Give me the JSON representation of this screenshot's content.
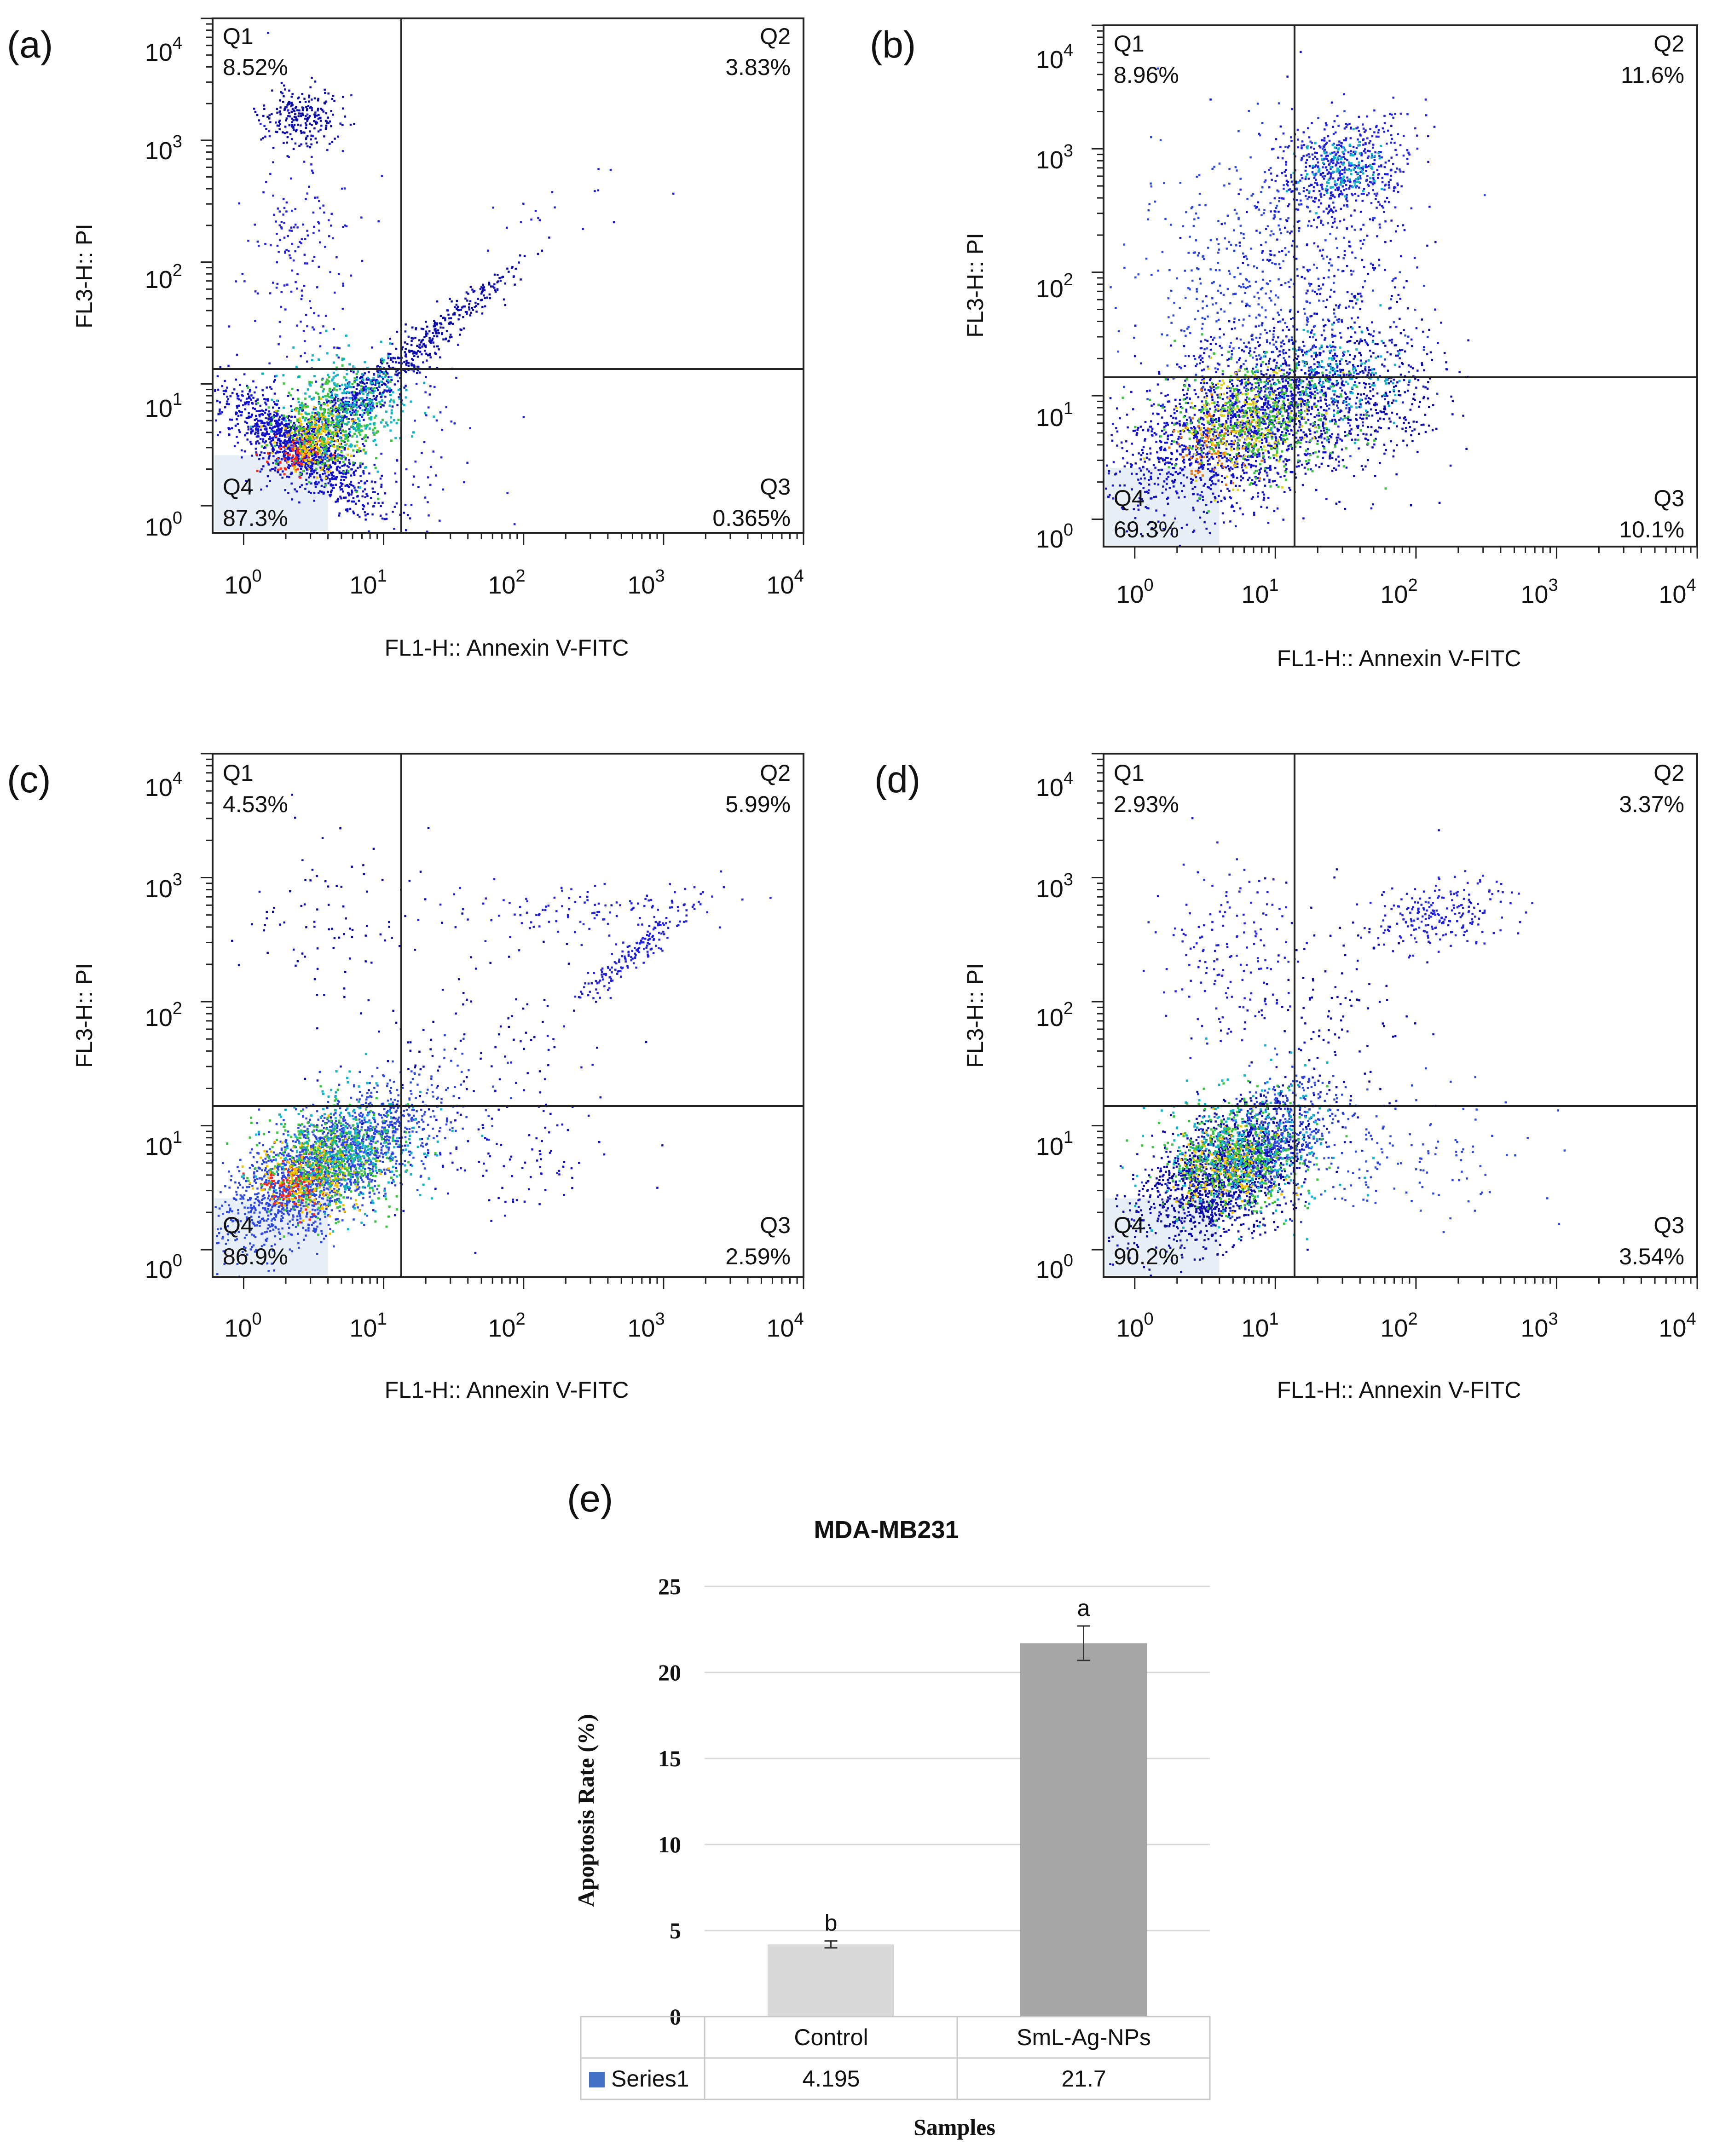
{
  "chart_data": [
    {
      "type": "scatter",
      "panel_label": "(a)",
      "xlabel": "FL1-H:: Annexin V-FITC",
      "ylabel": "FL3-H:: PI",
      "axis_scale": "log",
      "xlim": [
        0.6,
        10000
      ],
      "ylim": [
        0.6,
        10000
      ],
      "x_ticks": [
        {
          "base": "10",
          "exp": "0"
        },
        {
          "base": "10",
          "exp": "1"
        },
        {
          "base": "10",
          "exp": "2"
        },
        {
          "base": "10",
          "exp": "3"
        },
        {
          "base": "10",
          "exp": "4"
        }
      ],
      "y_ticks": [
        {
          "base": "10",
          "exp": "0"
        },
        {
          "base": "10",
          "exp": "1"
        },
        {
          "base": "10",
          "exp": "2"
        },
        {
          "base": "10",
          "exp": "3"
        },
        {
          "base": "10",
          "exp": "4"
        }
      ],
      "gate": {
        "x": 18,
        "y": 20
      },
      "quadrants": [
        {
          "name": "Q1",
          "value": "8.52%"
        },
        {
          "name": "Q2",
          "value": "3.83%"
        },
        {
          "name": "Q3",
          "value": "0.365%"
        },
        {
          "name": "Q4",
          "value": "87.3%"
        }
      ],
      "clusters": [
        {
          "x": 2.5,
          "y": 3,
          "sx": 0.28,
          "sy": 0.25,
          "n": 1100,
          "r": -0.8
        },
        {
          "x": 5,
          "y": 6,
          "sx": 0.25,
          "sy": 0.22,
          "n": 500,
          "r": 0.85
        },
        {
          "x": 14,
          "y": 16,
          "sx": 0.22,
          "sy": 0.2,
          "n": 220,
          "r": 0.85
        },
        {
          "x": 40,
          "y": 45,
          "sx": 0.2,
          "sy": 0.18,
          "n": 140,
          "r": 0.9
        },
        {
          "x": 2.5,
          "y": 1600,
          "sx": 0.15,
          "sy": 0.12,
          "n": 230,
          "r": 0
        },
        {
          "x": 2.5,
          "y": 120,
          "sx": 0.2,
          "sy": 0.5,
          "n": 180,
          "r": 0
        },
        {
          "x": 20,
          "y": 3,
          "sx": 0.3,
          "sy": 0.35,
          "n": 50,
          "r": 0
        },
        {
          "x": 200,
          "y": 300,
          "sx": 0.3,
          "sy": 0.2,
          "n": 18,
          "r": 0.6
        }
      ],
      "hot_spots": [
        {
          "x": 2.3,
          "y": 2.6,
          "sx": 0.09,
          "sy": 0.07,
          "n": 70,
          "color": "#ff2b1c"
        },
        {
          "x": 3.2,
          "y": 3.6,
          "sx": 0.14,
          "sy": 0.13,
          "n": 200,
          "color": "#f2c200"
        },
        {
          "x": 4.2,
          "y": 4.8,
          "sx": 0.2,
          "sy": 0.18,
          "n": 320,
          "color": "#39c43d"
        },
        {
          "x": 6,
          "y": 7,
          "sx": 0.22,
          "sy": 0.2,
          "n": 260,
          "color": "#12b5c8"
        }
      ]
    },
    {
      "type": "scatter",
      "panel_label": "(b)",
      "xlabel": "FL1-H:: Annexin V-FITC",
      "ylabel": "FL3-H:: PI",
      "axis_scale": "log",
      "xlim": [
        0.6,
        10000
      ],
      "ylim": [
        0.6,
        10000
      ],
      "x_ticks": [
        {
          "base": "10",
          "exp": "0"
        },
        {
          "base": "10",
          "exp": "1"
        },
        {
          "base": "10",
          "exp": "2"
        },
        {
          "base": "10",
          "exp": "3"
        },
        {
          "base": "10",
          "exp": "4"
        }
      ],
      "y_ticks": [
        {
          "base": "10",
          "exp": "0"
        },
        {
          "base": "10",
          "exp": "1"
        },
        {
          "base": "10",
          "exp": "2"
        },
        {
          "base": "10",
          "exp": "3"
        },
        {
          "base": "10",
          "exp": "4"
        }
      ],
      "gate": {
        "x": 18,
        "y": 20
      },
      "quadrants": [
        {
          "name": "Q1",
          "value": "8.96%"
        },
        {
          "name": "Q2",
          "value": "11.6%"
        },
        {
          "name": "Q3",
          "value": "10.1%"
        },
        {
          "name": "Q4",
          "value": "69.3%"
        }
      ],
      "clusters": [
        {
          "x": 4,
          "y": 5,
          "sx": 0.4,
          "sy": 0.35,
          "n": 1300,
          "r": 0.4
        },
        {
          "x": 14,
          "y": 9,
          "sx": 0.35,
          "sy": 0.3,
          "n": 700,
          "r": 0.2
        },
        {
          "x": 45,
          "y": 10,
          "sx": 0.3,
          "sy": 0.3,
          "n": 320,
          "r": 0
        },
        {
          "x": 30,
          "y": 700,
          "sx": 0.25,
          "sy": 0.22,
          "n": 520,
          "r": 0.2
        },
        {
          "x": 8,
          "y": 90,
          "sx": 0.45,
          "sy": 0.55,
          "n": 520,
          "r": 0
        },
        {
          "x": 25,
          "y": 150,
          "sx": 0.35,
          "sy": 0.5,
          "n": 220,
          "r": 0
        }
      ],
      "hot_spots": [
        {
          "x": 4,
          "y": 4.2,
          "sx": 0.16,
          "sy": 0.14,
          "n": 90,
          "color": "#f27a12"
        },
        {
          "x": 6,
          "y": 6.5,
          "sx": 0.22,
          "sy": 0.2,
          "n": 220,
          "color": "#e0d41a"
        },
        {
          "x": 8,
          "y": 7,
          "sx": 0.32,
          "sy": 0.25,
          "n": 360,
          "color": "#39c43d"
        },
        {
          "x": 30,
          "y": 750,
          "sx": 0.14,
          "sy": 0.12,
          "n": 110,
          "color": "#12b5c8"
        },
        {
          "x": 25,
          "y": 15,
          "sx": 0.25,
          "sy": 0.2,
          "n": 140,
          "color": "#12b5c8"
        }
      ]
    },
    {
      "type": "scatter",
      "panel_label": "(c)",
      "xlabel": "FL1-H:: Annexin V-FITC",
      "ylabel": "FL3-H:: PI",
      "axis_scale": "log",
      "xlim": [
        0.6,
        10000
      ],
      "ylim": [
        0.6,
        10000
      ],
      "x_ticks": [
        {
          "base": "10",
          "exp": "0"
        },
        {
          "base": "10",
          "exp": "1"
        },
        {
          "base": "10",
          "exp": "2"
        },
        {
          "base": "10",
          "exp": "3"
        },
        {
          "base": "10",
          "exp": "4"
        }
      ],
      "y_ticks": [
        {
          "base": "10",
          "exp": "0"
        },
        {
          "base": "10",
          "exp": "1"
        },
        {
          "base": "10",
          "exp": "2"
        },
        {
          "base": "10",
          "exp": "3"
        },
        {
          "base": "10",
          "exp": "4"
        }
      ],
      "gate": {
        "x": 18,
        "y": 20
      },
      "quadrants": [
        {
          "name": "Q1",
          "value": "4.53%"
        },
        {
          "name": "Q2",
          "value": "5.99%"
        },
        {
          "name": "Q3",
          "value": "2.59%"
        },
        {
          "name": "Q4",
          "value": "86.9%"
        }
      ],
      "clusters": [
        {
          "x": 3,
          "y": 4,
          "sx": 0.32,
          "sy": 0.28,
          "n": 1600,
          "r": 0.6
        },
        {
          "x": 10,
          "y": 10,
          "sx": 0.3,
          "sy": 0.25,
          "n": 380,
          "r": 0.5
        },
        {
          "x": 60,
          "y": 6,
          "sx": 0.45,
          "sy": 0.3,
          "n": 120,
          "r": 0.2
        },
        {
          "x": 600,
          "y": 250,
          "sx": 0.22,
          "sy": 0.22,
          "n": 170,
          "r": 0.95
        },
        {
          "x": 300,
          "y": 550,
          "sx": 0.45,
          "sy": 0.12,
          "n": 120,
          "r": 0
        },
        {
          "x": 5,
          "y": 400,
          "sx": 0.35,
          "sy": 0.45,
          "n": 90,
          "r": 0
        },
        {
          "x": 40,
          "y": 40,
          "sx": 0.5,
          "sy": 0.4,
          "n": 90,
          "r": 0.5
        }
      ],
      "hot_spots": [
        {
          "x": 2.2,
          "y": 3.3,
          "sx": 0.12,
          "sy": 0.1,
          "n": 110,
          "color": "#ff2b1c"
        },
        {
          "x": 3,
          "y": 4,
          "sx": 0.18,
          "sy": 0.16,
          "n": 240,
          "color": "#f2c200"
        },
        {
          "x": 4.2,
          "y": 5.5,
          "sx": 0.25,
          "sy": 0.22,
          "n": 360,
          "color": "#39c43d"
        },
        {
          "x": 5.5,
          "y": 6.5,
          "sx": 0.28,
          "sy": 0.25,
          "n": 260,
          "color": "#12b5c8"
        }
      ]
    },
    {
      "type": "scatter",
      "panel_label": "(d)",
      "xlabel": "FL1-H:: Annexin V-FITC",
      "ylabel": "FL3-H:: PI",
      "axis_scale": "log",
      "xlim": [
        0.6,
        10000
      ],
      "ylim": [
        0.6,
        10000
      ],
      "x_ticks": [
        {
          "base": "10",
          "exp": "0"
        },
        {
          "base": "10",
          "exp": "1"
        },
        {
          "base": "10",
          "exp": "2"
        },
        {
          "base": "10",
          "exp": "3"
        },
        {
          "base": "10",
          "exp": "4"
        }
      ],
      "y_ticks": [
        {
          "base": "10",
          "exp": "0"
        },
        {
          "base": "10",
          "exp": "1"
        },
        {
          "base": "10",
          "exp": "2"
        },
        {
          "base": "10",
          "exp": "3"
        },
        {
          "base": "10",
          "exp": "4"
        }
      ],
      "gate": {
        "x": 18,
        "y": 20
      },
      "quadrants": [
        {
          "name": "Q1",
          "value": "2.93%"
        },
        {
          "name": "Q2",
          "value": "3.37%"
        },
        {
          "name": "Q3",
          "value": "3.54%"
        },
        {
          "name": "Q4",
          "value": "90.2%"
        }
      ],
      "clusters": [
        {
          "x": 4,
          "y": 4,
          "sx": 0.3,
          "sy": 0.28,
          "n": 1500,
          "r": 0.5
        },
        {
          "x": 10,
          "y": 8,
          "sx": 0.25,
          "sy": 0.25,
          "n": 500,
          "r": 0.4
        },
        {
          "x": 150,
          "y": 500,
          "sx": 0.25,
          "sy": 0.15,
          "n": 220,
          "r": 0.4
        },
        {
          "x": 5,
          "y": 250,
          "sx": 0.25,
          "sy": 0.4,
          "n": 160,
          "r": 0
        },
        {
          "x": 80,
          "y": 6,
          "sx": 0.45,
          "sy": 0.35,
          "n": 140,
          "r": 0
        },
        {
          "x": 20,
          "y": 60,
          "sx": 0.35,
          "sy": 0.5,
          "n": 140,
          "r": 0.3
        }
      ],
      "hot_spots": [
        {
          "x": 4.5,
          "y": 4.8,
          "sx": 0.18,
          "sy": 0.16,
          "n": 180,
          "color": "#f2c200"
        },
        {
          "x": 5,
          "y": 5.5,
          "sx": 0.25,
          "sy": 0.22,
          "n": 380,
          "color": "#39c43d"
        },
        {
          "x": 6,
          "y": 6.5,
          "sx": 0.3,
          "sy": 0.28,
          "n": 300,
          "color": "#12b5c8"
        }
      ]
    },
    {
      "type": "bar",
      "panel_label": "(e)",
      "title": "MDA-MB231",
      "xlabel": "Samples",
      "ylabel": "Apoptosis Rate (%)",
      "ylim": [
        0,
        25
      ],
      "y_ticks": [
        "0",
        "5",
        "10",
        "15",
        "20",
        "25"
      ],
      "categories": [
        "Control",
        "SmL-Ag-NPs"
      ],
      "series": [
        {
          "name": "Series1",
          "values": [
            4.195,
            21.7
          ],
          "value_labels": [
            "4.195",
            "21.7"
          ],
          "errors": [
            0.2,
            1.0
          ],
          "colors": [
            "#d9d9d9",
            "#a6a6a6"
          ],
          "significance": [
            "b",
            "a"
          ]
        }
      ],
      "legend_color": "#4472c4",
      "data_table": true
    }
  ]
}
